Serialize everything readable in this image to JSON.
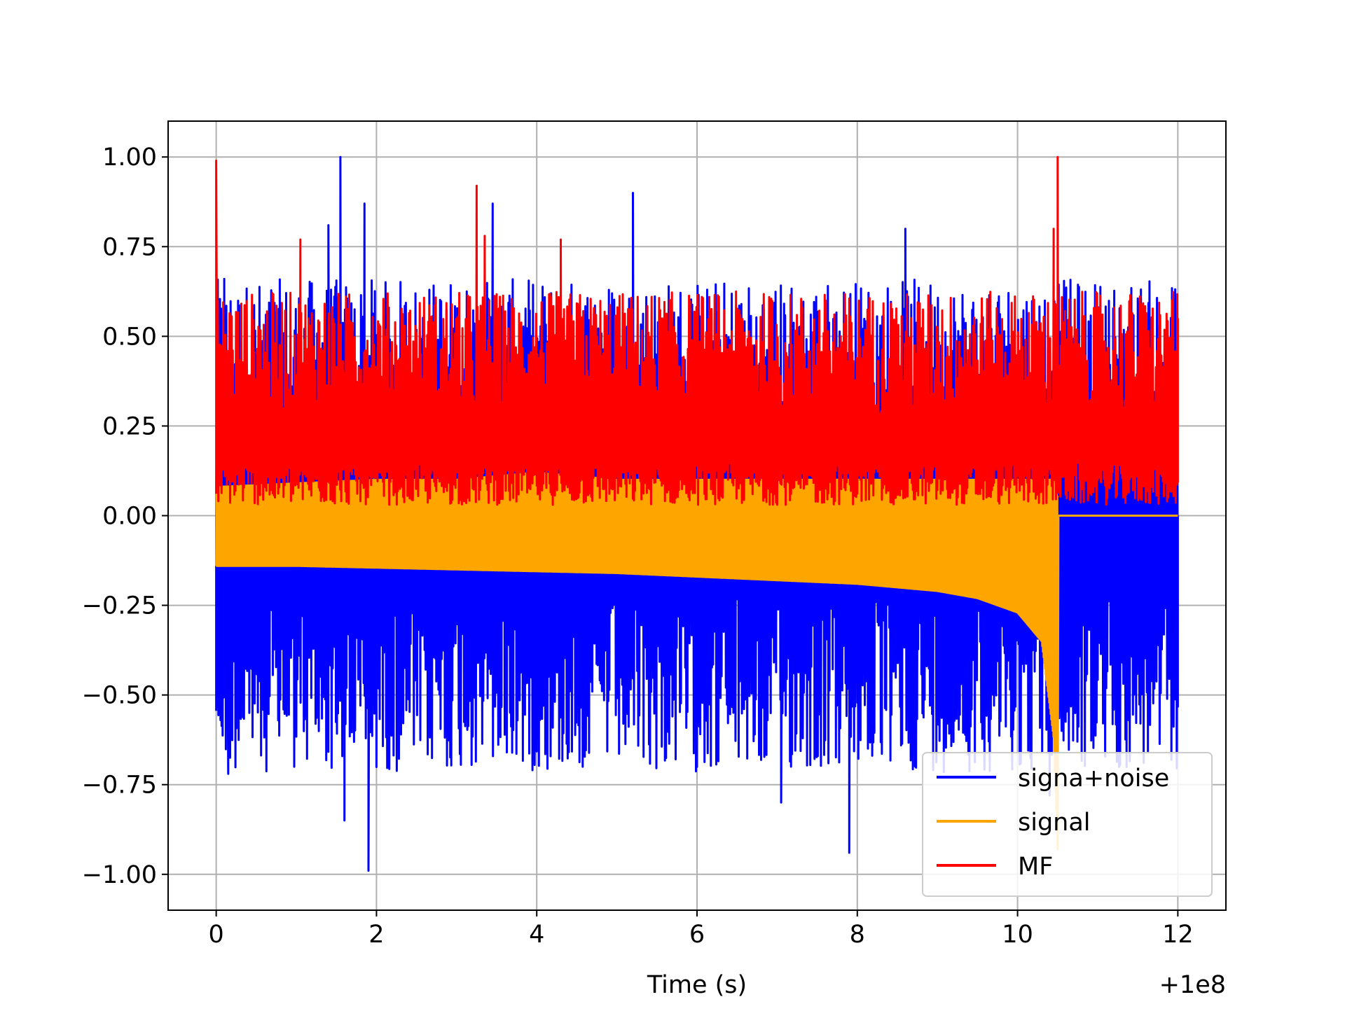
{
  "chart_data": {
    "type": "line",
    "title": "",
    "xlabel": "Time (s)",
    "ylabel": "",
    "x_offset_label": "+1e8",
    "xlim": [
      -0.6,
      12.6
    ],
    "ylim": [
      -1.1,
      1.1
    ],
    "x_ticks": [
      0,
      2,
      4,
      6,
      8,
      10,
      12
    ],
    "x_tick_labels": [
      "0",
      "2",
      "4",
      "6",
      "8",
      "10",
      "12"
    ],
    "y_ticks": [
      1.0,
      0.75,
      0.5,
      0.25,
      0.0,
      -0.25,
      -0.5,
      -0.75,
      -1.0
    ],
    "y_tick_labels": [
      "1.00",
      "0.75",
      "0.50",
      "0.25",
      "0.00",
      "−0.25",
      "−0.50",
      "−0.75",
      "−1.00"
    ],
    "grid": true,
    "legend_position": "lower-right",
    "colors": {
      "signa+noise": "#0000ff",
      "signal": "#ffa500",
      "MF": "#ff0000",
      "grid": "#b0b0b0"
    },
    "series": [
      {
        "name": "signa+noise",
        "color": "#0000ff",
        "x": [
          0,
          0.1,
          0.15,
          1.4,
          1.55,
          1.6,
          1.85,
          1.9,
          3.45,
          5.2,
          7.05,
          7.9,
          8.6,
          10.4,
          10.5,
          10.55,
          12.0
        ],
        "y": [
          0.0,
          0.66,
          -0.72,
          0.81,
          1.0,
          -0.85,
          0.87,
          -0.99,
          0.87,
          0.9,
          -0.8,
          -0.94,
          0.8,
          -0.78,
          0.3,
          -0.6,
          0.0
        ],
        "envelope_upper": 0.6,
        "envelope_lower": -0.55
      },
      {
        "name": "signal",
        "color": "#ffa500",
        "x": [
          0,
          1,
          2,
          3,
          4,
          5,
          6,
          7,
          8,
          9,
          9.5,
          10,
          10.3,
          10.45,
          10.5,
          10.51,
          12.0
        ],
        "y_lower": [
          -0.14,
          -0.14,
          -0.145,
          -0.15,
          -0.155,
          -0.16,
          -0.17,
          -0.18,
          -0.19,
          -0.21,
          -0.23,
          -0.27,
          -0.35,
          -0.62,
          -0.93,
          0.0,
          0.0
        ],
        "y_upper": [
          0.08,
          0.09,
          0.1,
          0.1,
          0.12,
          0.1,
          0.1,
          0.1,
          0.1,
          0.1,
          0.1,
          0.1,
          0.1,
          0.1,
          0.05,
          0.0,
          0.0
        ]
      },
      {
        "name": "MF",
        "color": "#ff0000",
        "x": [
          0,
          0.02,
          1.05,
          3.25,
          3.35,
          4.3,
          10.45,
          10.5,
          12.0
        ],
        "y": [
          0.99,
          0.6,
          0.77,
          0.92,
          0.78,
          0.77,
          0.8,
          1.0,
          0.55
        ],
        "envelope_upper": 0.5,
        "envelope_lower": 0.03
      }
    ]
  }
}
